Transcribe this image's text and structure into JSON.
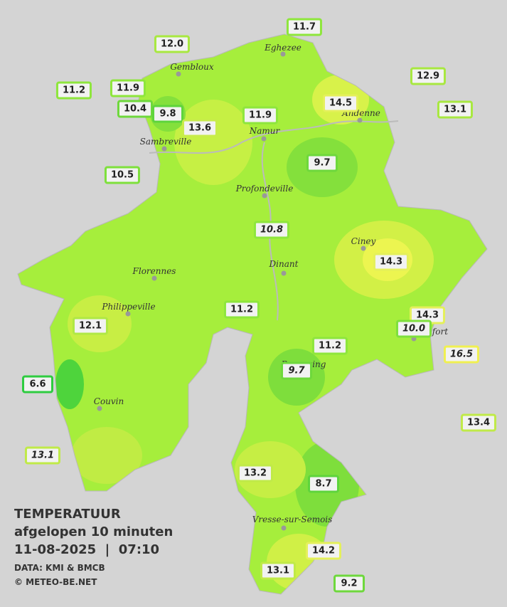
{
  "legend": {
    "title": "TEMPERATUUR",
    "period": "afgelopen 10 minuten",
    "datetime": "11-08-2025  |  07:10",
    "source": "DATA: KMI & BMCB",
    "copyright": "© METEO-BE.NET"
  },
  "towns": [
    "Eghezee",
    "Gembloux",
    "Andenne",
    "Namur",
    "Sambreville",
    "Profondeville",
    "Ciney",
    "Dinant",
    "Florennes",
    "Philippeville",
    "Rochefort",
    "Beauraing",
    "Couvin",
    "Vresse-sur-Semois"
  ],
  "stations": [
    {
      "label": "11.7",
      "color": "#8ee63c"
    },
    {
      "label": "12.0",
      "color": "#a8e840"
    },
    {
      "label": "12.9",
      "color": "#a8e840"
    },
    {
      "label": "11.2",
      "color": "#8ee63c"
    },
    {
      "label": "11.9",
      "color": "#8ee63c"
    },
    {
      "label": "14.5",
      "color": "#e4f05a"
    },
    {
      "label": "13.1",
      "color": "#a8e840"
    },
    {
      "label": "10.4",
      "color": "#6ed83c"
    },
    {
      "label": "9.8",
      "color": "#5ed43c"
    },
    {
      "label": "13.6",
      "color": "#c8ec4a"
    },
    {
      "label": "11.9",
      "color": "#8ee63c"
    },
    {
      "label": "10.5",
      "color": "#7ee03c"
    },
    {
      "label": "9.7",
      "color": "#6ed83c"
    },
    {
      "label": "10.8",
      "color": "#8ee63c",
      "italic": true
    },
    {
      "label": "14.3",
      "color": "#e4f05a"
    },
    {
      "label": "12.1",
      "color": "#b0e844"
    },
    {
      "label": "11.2",
      "color": "#8ee63c"
    },
    {
      "label": "14.3",
      "color": "#e4f05a"
    },
    {
      "label": "10.0",
      "color": "#7ee03c",
      "italic": true
    },
    {
      "label": "16.5",
      "color": "#f0f050",
      "italic": true
    },
    {
      "label": "11.2",
      "color": "#8ee63c"
    },
    {
      "label": "9.7",
      "color": "#6ed83c",
      "italic": true
    },
    {
      "label": "6.6",
      "color": "#2ecc40"
    },
    {
      "label": "13.4",
      "color": "#c0ea48"
    },
    {
      "label": "13.1",
      "color": "#c0ea48",
      "italic": true
    },
    {
      "label": "13.2",
      "color": "#c0ea48"
    },
    {
      "label": "8.7",
      "color": "#5ed43c"
    },
    {
      "label": "14.2",
      "color": "#e4f05a"
    },
    {
      "label": "13.1",
      "color": "#c0ea48"
    },
    {
      "label": "9.2",
      "color": "#6ed83c"
    }
  ]
}
